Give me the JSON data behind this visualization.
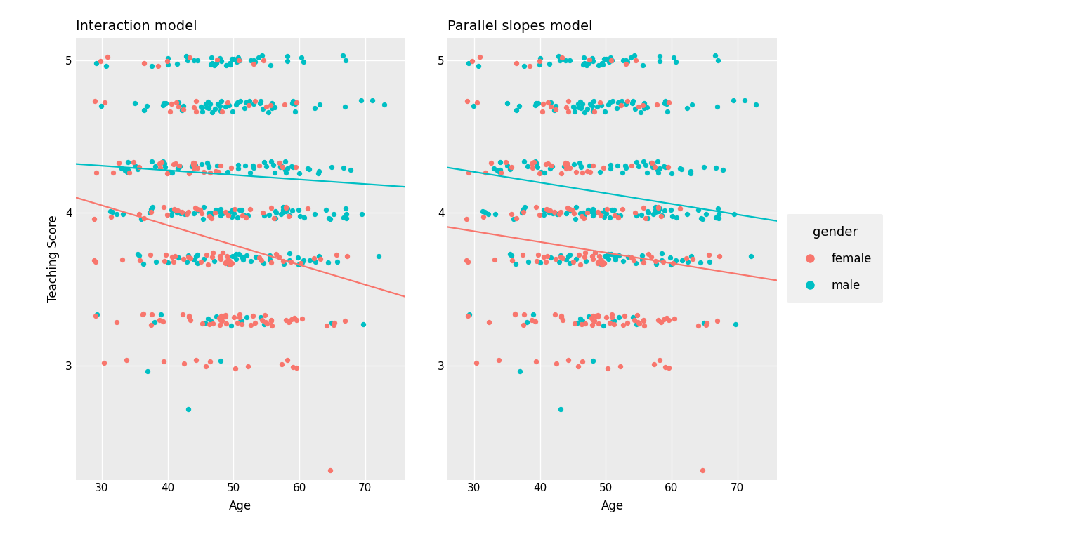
{
  "title_left": "Interaction model",
  "title_right": "Parallel slopes model",
  "xlabel": "Age",
  "ylabel": "Teaching Score",
  "female_color": "#F8766D",
  "male_color": "#00BFC4",
  "bg_color": "#EBEBEB",
  "grid_color": "#FFFFFF",
  "xlim": [
    26,
    76
  ],
  "ylim": [
    2.25,
    5.15
  ],
  "xticks": [
    30,
    40,
    50,
    60,
    70
  ],
  "yticks": [
    3,
    4,
    5
  ],
  "legend_title": "gender",
  "legend_labels": [
    "female",
    "male"
  ],
  "interaction_female_intercept": 4.44,
  "interaction_female_slope": -0.013,
  "interaction_male_intercept": 4.4,
  "interaction_male_slope": -0.003,
  "parallel_female_intercept": 4.09,
  "parallel_female_slope": -0.007,
  "parallel_male_intercept": 4.48,
  "parallel_male_slope": -0.007,
  "dot_size": 28,
  "dot_alpha": 1.0,
  "line_width": 1.6
}
